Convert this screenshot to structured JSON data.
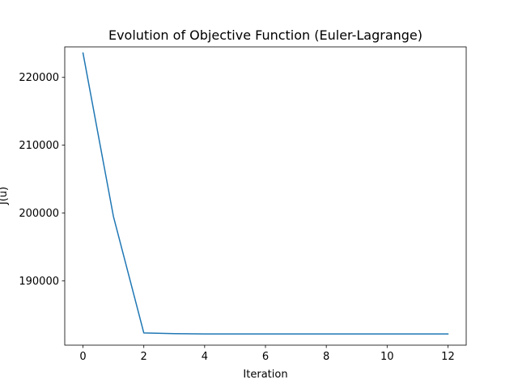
{
  "chart_data": {
    "type": "line",
    "title": "Evolution of Objective Function (Euler-Lagrange)",
    "xlabel": "Iteration",
    "ylabel": "J(u)",
    "xlim": [
      -0.6,
      12.6
    ],
    "ylim": [
      180500,
      224500
    ],
    "xticks": [
      0,
      2,
      4,
      6,
      8,
      10,
      12
    ],
    "yticks": [
      190000,
      200000,
      210000,
      220000
    ],
    "xtick_labels": [
      "0",
      "2",
      "4",
      "6",
      "8",
      "10",
      "12"
    ],
    "ytick_labels": [
      "190000",
      "200000",
      "210000",
      "220000"
    ],
    "grid": false,
    "legend": "none",
    "series": [
      {
        "color": "#1f77b4",
        "x": [
          0,
          1,
          2,
          3,
          4,
          5,
          6,
          7,
          8,
          9,
          10,
          11,
          12
        ],
        "y": [
          223600,
          199500,
          182300,
          182200,
          182150,
          182150,
          182150,
          182150,
          182150,
          182150,
          182150,
          182150,
          182150
        ]
      }
    ]
  }
}
